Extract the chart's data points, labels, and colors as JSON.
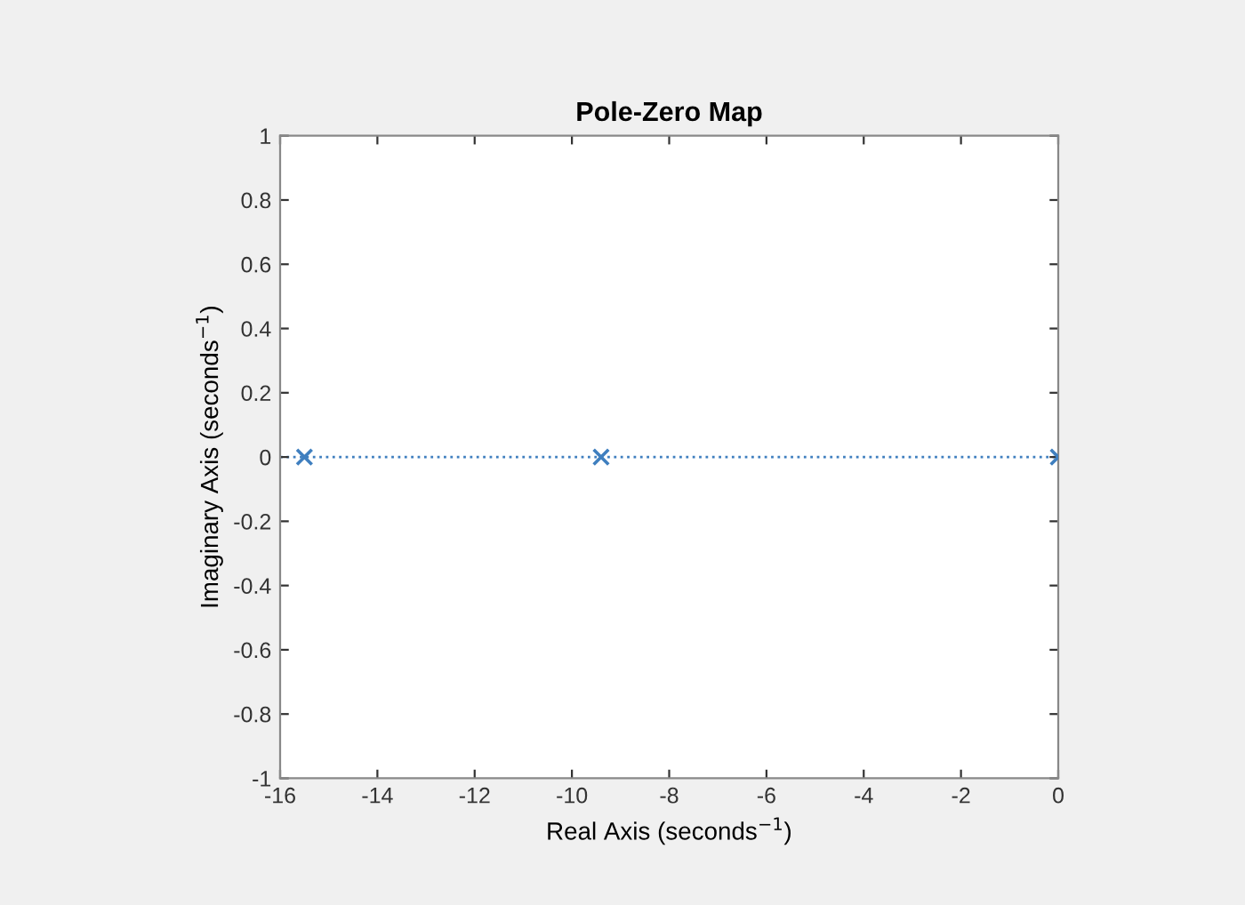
{
  "chart_data": {
    "type": "scatter",
    "title": "Pole-Zero Map",
    "xlabel": "Real Axis (seconds$^{−1}$)",
    "ylabel": "Imaginary Axis (seconds$^{−1}$)",
    "x": [
      -15.5,
      -9.4,
      0
    ],
    "series": [
      {
        "color": "#3f7fbf",
        "values": [
          0,
          0,
          0
        ]
      }
    ],
    "marker": "cross",
    "xlim": [
      -16,
      0
    ],
    "xticks": [
      -16,
      -14,
      -12,
      -10,
      -8,
      -6,
      -4,
      -2,
      0
    ],
    "ylim": [
      -1,
      1
    ],
    "yticks": [
      -1,
      -0.8,
      -0.6,
      -0.4,
      -0.2,
      0,
      0.2,
      0.4,
      0.6,
      0.8,
      1
    ],
    "ref_lines": [
      {
        "axis": "y",
        "value": 0,
        "color": "#3f7fbf",
        "line_style": "dotted"
      }
    ],
    "grid": false,
    "legend": false
  }
}
